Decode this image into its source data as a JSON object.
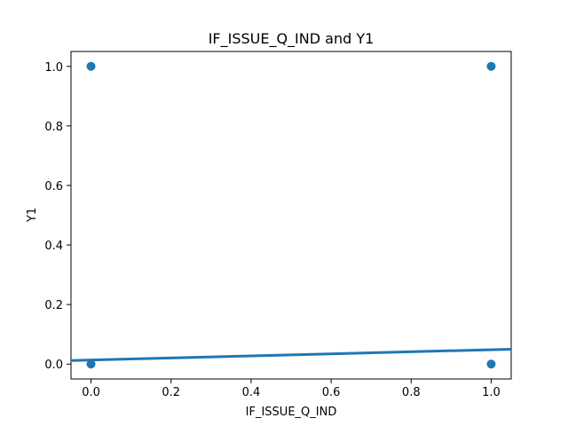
{
  "chart_data": {
    "type": "scatter",
    "title": "IF_ISSUE_Q_IND and Y1",
    "xlabel": "IF_ISSUE_Q_IND",
    "ylabel": "Y1",
    "xlim": [
      -0.05,
      1.05
    ],
    "ylim": [
      -0.05,
      1.05
    ],
    "x_ticks": [
      0.0,
      0.2,
      0.4,
      0.6,
      0.8,
      1.0
    ],
    "x_tick_labels": [
      "0.0",
      "0.2",
      "0.4",
      "0.6",
      "0.8",
      "1.0"
    ],
    "y_ticks": [
      0.0,
      0.2,
      0.4,
      0.6,
      0.8,
      1.0
    ],
    "y_tick_labels": [
      "0.0",
      "0.2",
      "0.4",
      "0.6",
      "0.8",
      "1.0"
    ],
    "grid": false,
    "points": [
      {
        "x": 0,
        "y": 0
      },
      {
        "x": 0,
        "y": 1
      },
      {
        "x": 1,
        "y": 0
      },
      {
        "x": 1,
        "y": 1
      }
    ],
    "regression_line": {
      "x": [
        -0.05,
        1.05
      ],
      "y": [
        0.012,
        0.05
      ]
    },
    "color": "#1f77b4"
  }
}
